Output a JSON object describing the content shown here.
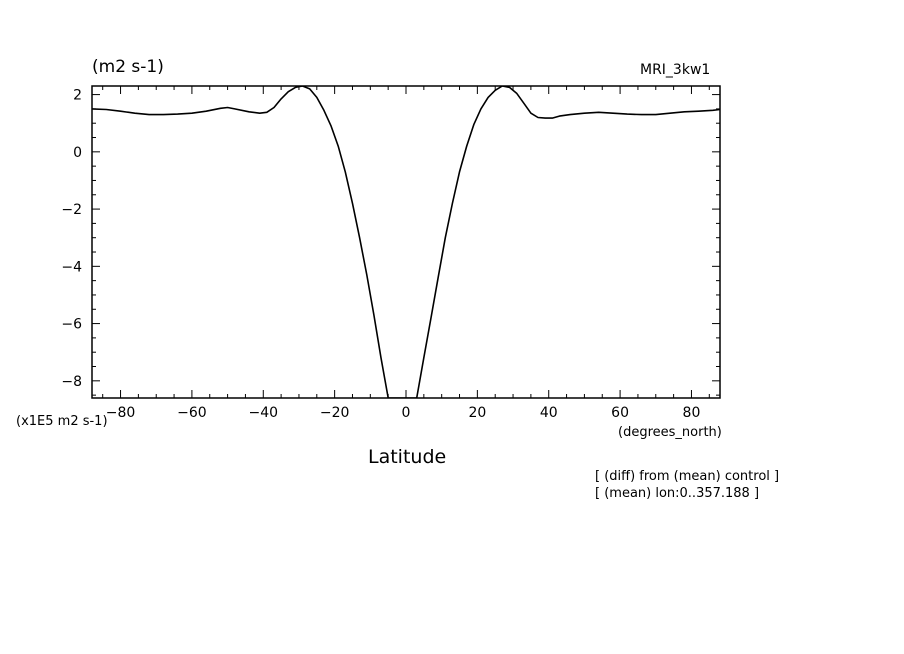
{
  "header": {
    "units": "(m2 s-1)",
    "model": "MRI_3kw1"
  },
  "axis_notes": {
    "scale": "(x1E5 m2 s-1)",
    "x_units": "(degrees_north)"
  },
  "footer": {
    "line1": "[ (diff) from (mean) control ]",
    "line2": "[ (mean) lon:0..357.188 ]"
  },
  "chart_data": {
    "type": "line",
    "title": "",
    "xlabel": "Latitude",
    "ylabel": "",
    "xlim": [
      -88,
      88
    ],
    "ylim": [
      -8.6,
      2.3
    ],
    "x_ticks": [
      -80,
      -60,
      -40,
      -20,
      0,
      20,
      40,
      60,
      80
    ],
    "x_tick_labels": [
      "−80",
      "−60",
      "−40",
      "−20",
      "0",
      "20",
      "40",
      "60",
      "80"
    ],
    "y_ticks": [
      2,
      0,
      -2,
      -4,
      -6,
      -8
    ],
    "y_tick_labels": [
      "2",
      "0",
      "−2",
      "−4",
      "−6",
      "−8"
    ],
    "grid": false,
    "series": [
      {
        "x": [
          -88,
          -84,
          -80,
          -76,
          -72,
          -68,
          -64,
          -60,
          -56,
          -52,
          -50,
          -48,
          -44,
          -41,
          -39,
          -37,
          -35,
          -33,
          -31,
          -29,
          -27,
          -25,
          -23,
          -21,
          -19,
          -17,
          -15,
          -13,
          -11,
          -9,
          -7,
          -5,
          -3,
          -1,
          1,
          3,
          5,
          7,
          9,
          11,
          13,
          15,
          17,
          19,
          21,
          23,
          25,
          27,
          29,
          31,
          33,
          35,
          37,
          39,
          41,
          43,
          46,
          50,
          54,
          58,
          62,
          66,
          70,
          74,
          78,
          82,
          86,
          88
        ],
        "y": [
          1.5,
          1.48,
          1.42,
          1.35,
          1.3,
          1.3,
          1.32,
          1.35,
          1.42,
          1.52,
          1.55,
          1.5,
          1.4,
          1.35,
          1.38,
          1.55,
          1.85,
          2.1,
          2.25,
          2.3,
          2.2,
          1.9,
          1.45,
          0.9,
          0.2,
          -0.7,
          -1.8,
          -3.0,
          -4.3,
          -5.7,
          -7.2,
          -8.6,
          -8.6,
          -8.6,
          -8.6,
          -8.6,
          -7.2,
          -5.8,
          -4.4,
          -3.0,
          -1.8,
          -0.7,
          0.2,
          0.95,
          1.5,
          1.9,
          2.15,
          2.3,
          2.25,
          2.05,
          1.7,
          1.35,
          1.2,
          1.18,
          1.18,
          1.25,
          1.3,
          1.35,
          1.38,
          1.35,
          1.32,
          1.3,
          1.3,
          1.35,
          1.4,
          1.42,
          1.45,
          1.48
        ]
      }
    ]
  }
}
